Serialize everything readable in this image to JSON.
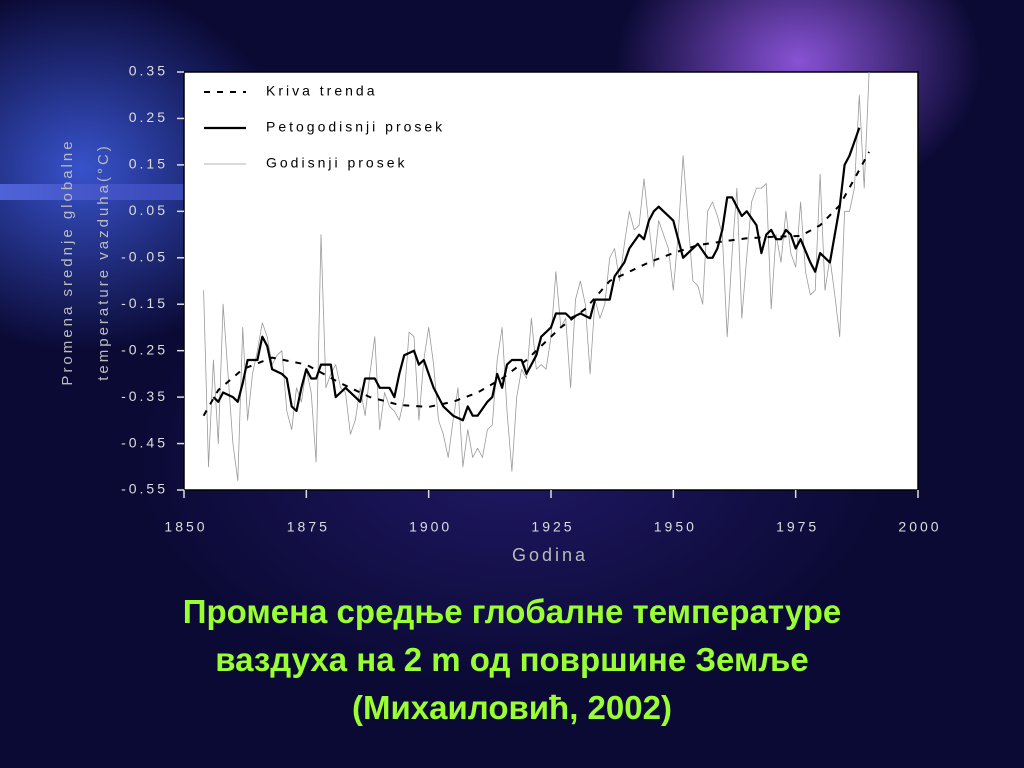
{
  "chart_data": {
    "type": "line",
    "xlabel": "Godina",
    "ylabel": [
      "Promena srednje globalne",
      "temperature vazduha(°C)"
    ],
    "xlim": [
      1850,
      2000
    ],
    "xticks": [
      1850,
      1875,
      1900,
      1925,
      1950,
      1975,
      2000
    ],
    "ylim": [
      -0.55,
      0.35
    ],
    "yticks": [
      0.35,
      0.25,
      0.15,
      0.05,
      -0.05,
      -0.15,
      -0.25,
      -0.35,
      -0.45,
      -0.55
    ],
    "legend": "top-left",
    "series": [
      {
        "name": "Kriva trenda",
        "color": "#000000",
        "style": "dashed",
        "x": [
          1854,
          1857,
          1862,
          1868,
          1875,
          1882,
          1888,
          1894,
          1900,
          1905,
          1910,
          1915,
          1920,
          1927,
          1932,
          1937,
          1941,
          1945,
          1950,
          1955,
          1960,
          1965,
          1970,
          1976,
          1980,
          1984,
          1988,
          1990
        ],
        "values": [
          -0.39,
          -0.335,
          -0.29,
          -0.265,
          -0.28,
          -0.32,
          -0.35,
          -0.367,
          -0.371,
          -0.36,
          -0.34,
          -0.31,
          -0.27,
          -0.2,
          -0.16,
          -0.1,
          -0.08,
          -0.06,
          -0.04,
          -0.023,
          -0.015,
          -0.008,
          -0.005,
          -0.003,
          0.02,
          0.063,
          0.139,
          0.178
        ]
      },
      {
        "name": "Petogodisnji prosek",
        "color": "#000000",
        "style": "solid",
        "x": [
          1856,
          1857,
          1858,
          1860,
          1861,
          1862,
          1863,
          1865,
          1866,
          1867,
          1868,
          1870,
          1871,
          1872,
          1873,
          1874,
          1875,
          1876,
          1877,
          1878,
          1880,
          1881,
          1882,
          1883,
          1885,
          1886,
          1887,
          1889,
          1890,
          1892,
          1893,
          1894,
          1895,
          1897,
          1898,
          1899,
          1901,
          1903,
          1905,
          1907,
          1908,
          1909,
          1910,
          1912,
          1913,
          1914,
          1915,
          1916,
          1917,
          1919,
          1920,
          1922,
          1923,
          1925,
          1926,
          1928,
          1929,
          1931,
          1933,
          1934,
          1935,
          1937,
          1938,
          1940,
          1941,
          1943,
          1944,
          1945,
          1946,
          1947,
          1948,
          1950,
          1951,
          1952,
          1953,
          1954,
          1955,
          1957,
          1958,
          1959,
          1960,
          1961,
          1962,
          1963,
          1964,
          1965,
          1967,
          1968,
          1969,
          1970,
          1971,
          1972,
          1973,
          1974,
          1975,
          1976,
          1978,
          1979,
          1980,
          1982,
          1983,
          1984,
          1985,
          1986,
          1987,
          1988
        ],
        "values": [
          -0.35,
          -0.36,
          -0.34,
          -0.35,
          -0.36,
          -0.32,
          -0.27,
          -0.27,
          -0.22,
          -0.24,
          -0.29,
          -0.3,
          -0.31,
          -0.37,
          -0.38,
          -0.33,
          -0.29,
          -0.31,
          -0.31,
          -0.28,
          -0.28,
          -0.35,
          -0.34,
          -0.33,
          -0.35,
          -0.36,
          -0.31,
          -0.31,
          -0.33,
          -0.33,
          -0.35,
          -0.3,
          -0.26,
          -0.25,
          -0.28,
          -0.27,
          -0.33,
          -0.37,
          -0.39,
          -0.4,
          -0.37,
          -0.39,
          -0.39,
          -0.36,
          -0.35,
          -0.3,
          -0.33,
          -0.28,
          -0.27,
          -0.27,
          -0.3,
          -0.26,
          -0.22,
          -0.2,
          -0.17,
          -0.17,
          -0.18,
          -0.17,
          -0.18,
          -0.14,
          -0.14,
          -0.14,
          -0.09,
          -0.06,
          -0.03,
          0,
          -0.01,
          0.03,
          0.05,
          0.06,
          0.05,
          0.03,
          -0.01,
          -0.05,
          -0.04,
          -0.03,
          -0.02,
          -0.05,
          -0.05,
          -0.03,
          0.01,
          0.08,
          0.08,
          0.06,
          0.04,
          0.05,
          0.02,
          -0.04,
          0,
          0.01,
          -0.01,
          -0.01,
          0.01,
          0,
          -0.03,
          -0.01,
          -0.06,
          -0.08,
          -0.04,
          -0.06,
          0,
          0.06,
          0.15,
          0.17,
          0.2,
          0.23
        ]
      },
      {
        "name": "Godisnji prosek",
        "color": "#9a9a9a",
        "style": "thin",
        "x": [
          1854,
          1855,
          1856,
          1857,
          1858,
          1859,
          1860,
          1861,
          1862,
          1863,
          1864,
          1865,
          1866,
          1867,
          1868,
          1869,
          1870,
          1871,
          1872,
          1873,
          1874,
          1875,
          1876,
          1877,
          1878,
          1879,
          1880,
          1881,
          1882,
          1883,
          1884,
          1885,
          1886,
          1887,
          1888,
          1889,
          1890,
          1891,
          1892,
          1893,
          1894,
          1895,
          1896,
          1897,
          1898,
          1899,
          1900,
          1901,
          1902,
          1903,
          1904,
          1905,
          1906,
          1907,
          1908,
          1909,
          1910,
          1911,
          1912,
          1913,
          1914,
          1915,
          1916,
          1917,
          1918,
          1919,
          1920,
          1921,
          1922,
          1923,
          1924,
          1925,
          1926,
          1927,
          1928,
          1929,
          1930,
          1931,
          1932,
          1933,
          1934,
          1935,
          1936,
          1937,
          1938,
          1939,
          1940,
          1941,
          1942,
          1943,
          1944,
          1945,
          1946,
          1947,
          1948,
          1949,
          1950,
          1951,
          1952,
          1953,
          1954,
          1955,
          1956,
          1957,
          1958,
          1959,
          1960,
          1961,
          1962,
          1963,
          1964,
          1965,
          1966,
          1967,
          1968,
          1969,
          1970,
          1971,
          1972,
          1973,
          1974,
          1975,
          1976,
          1977,
          1978,
          1979,
          1980,
          1981,
          1982,
          1983,
          1984,
          1985,
          1986,
          1987,
          1988,
          1989,
          1990
        ],
        "values": [
          -0.12,
          -0.5,
          -0.27,
          -0.45,
          -0.15,
          -0.3,
          -0.45,
          -0.53,
          -0.2,
          -0.4,
          -0.3,
          -0.25,
          -0.19,
          -0.22,
          -0.28,
          -0.26,
          -0.25,
          -0.38,
          -0.42,
          -0.33,
          -0.36,
          -0.29,
          -0.34,
          -0.49,
          0,
          -0.33,
          -0.3,
          -0.28,
          -0.33,
          -0.34,
          -0.43,
          -0.4,
          -0.33,
          -0.39,
          -0.3,
          -0.22,
          -0.42,
          -0.34,
          -0.37,
          -0.38,
          -0.4,
          -0.35,
          -0.21,
          -0.22,
          -0.4,
          -0.27,
          -0.2,
          -0.28,
          -0.4,
          -0.43,
          -0.48,
          -0.4,
          -0.33,
          -0.5,
          -0.42,
          -0.48,
          -0.46,
          -0.48,
          -0.42,
          -0.41,
          -0.27,
          -0.2,
          -0.38,
          -0.51,
          -0.35,
          -0.29,
          -0.31,
          -0.18,
          -0.29,
          -0.28,
          -0.29,
          -0.22,
          -0.08,
          -0.2,
          -0.18,
          -0.33,
          -0.14,
          -0.1,
          -0.15,
          -0.3,
          -0.14,
          -0.18,
          -0.15,
          -0.05,
          -0.03,
          -0.1,
          -0.02,
          0.05,
          0.01,
          0.02,
          0.12,
          0.02,
          -0.07,
          0.03,
          0,
          -0.03,
          -0.12,
          0,
          0.17,
          0.03,
          -0.1,
          -0.11,
          -0.15,
          0.05,
          0.07,
          0.04,
          0,
          -0.22,
          -0.04,
          0.1,
          -0.18,
          -0.05,
          0.07,
          0.1,
          0.1,
          0.11,
          -0.16,
          0,
          -0.06,
          0.05,
          -0.04,
          -0.07,
          0.07,
          -0.08,
          -0.13,
          -0.12,
          0.13,
          -0.12,
          -0.05,
          -0.13,
          -0.22,
          0.05,
          0.05,
          0.1,
          0.3,
          0.1,
          0.35
        ]
      }
    ]
  },
  "caption": [
    "Промена средње глобалне температуре",
    "ваздуха на 2 m од површине Земље",
    "(Михаиловић, 2002)"
  ]
}
